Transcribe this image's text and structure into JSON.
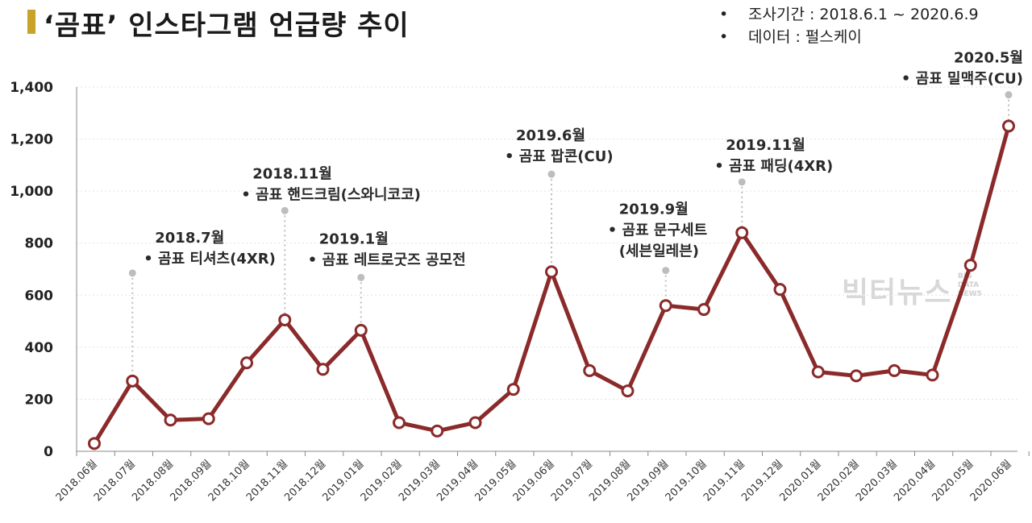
{
  "header": {
    "title": "‘곰표’ 인스타그램 언급량 추이",
    "info": [
      {
        "bullet": "•",
        "text": "조사기간 : 2018.6.1 ~ 2020.6.9"
      },
      {
        "bullet": "•",
        "text": "데이터 : 펄스케이"
      }
    ]
  },
  "watermark": {
    "main": "빅터뉴스",
    "sub1": "BIG",
    "sub2": "DATA",
    "sub3": "NEWS"
  },
  "colors": {
    "line": "#8b2a2a",
    "marker_fill": "#ffffff",
    "accent_bar": "#c9a227",
    "leader": "#bdbdbd"
  },
  "chart_data": {
    "type": "line",
    "title": "‘곰표’ 인스타그램 언급량 추이",
    "xlabel": "",
    "ylabel": "",
    "ylim": [
      0,
      1400
    ],
    "yticks": [
      0,
      200,
      400,
      600,
      800,
      1000,
      1200,
      1400
    ],
    "ytick_labels": [
      "0",
      "200",
      "400",
      "600",
      "800",
      "1,000",
      "1,200",
      "1,400"
    ],
    "grid": "horizontal dashed",
    "categories": [
      "2018.06월",
      "2018.07월",
      "2018.08월",
      "2018.09월",
      "2018.10월",
      "2018.11월",
      "2018.12월",
      "2019.01월",
      "2019.02월",
      "2019.03월",
      "2019.04월",
      "2019.05월",
      "2019.06월",
      "2019.07월",
      "2019.08월",
      "2019.09월",
      "2019.10월",
      "2019.11월",
      "2019.12월",
      "2020.01월",
      "2020.02월",
      "2020.03월",
      "2020.04월",
      "2020.05월",
      "2020.06월"
    ],
    "series": [
      {
        "values": [
          30,
          270,
          120,
          125,
          340,
          505,
          315,
          465,
          110,
          78,
          110,
          238,
          690,
          310,
          232,
          560,
          545,
          840,
          622,
          305,
          290,
          310,
          293,
          715,
          1250
        ]
      }
    ],
    "annotations": [
      {
        "index": 1,
        "date": "2018.7월",
        "lines": [
          "• 곰표 티셔츠(4XR)"
        ],
        "anchor_value": 685
      },
      {
        "index": 5,
        "date": "2018.11월",
        "lines": [
          "• 곰표 핸드크림(스와니코코)"
        ],
        "anchor_value": 925
      },
      {
        "index": 7,
        "date": "2019.1월",
        "lines": [
          "• 곰표 레트로굿즈 공모전"
        ],
        "anchor_value": 668
      },
      {
        "index": 12,
        "date": "2019.6월",
        "lines": [
          "• 곰표 팝콘(CU)"
        ],
        "anchor_value": 1065
      },
      {
        "index": 15,
        "date": "2019.9월",
        "lines": [
          "• 곰표 문구세트",
          "(세븐일레븐)"
        ],
        "anchor_value": 695
      },
      {
        "index": 17,
        "date": "2019.11월",
        "lines": [
          "• 곰표 패딩(4XR)"
        ],
        "anchor_value": 1035
      },
      {
        "index": 24,
        "date": "2020.5월",
        "lines": [
          "• 곰표 밀맥주(CU)"
        ],
        "anchor_value": 1370
      }
    ]
  }
}
